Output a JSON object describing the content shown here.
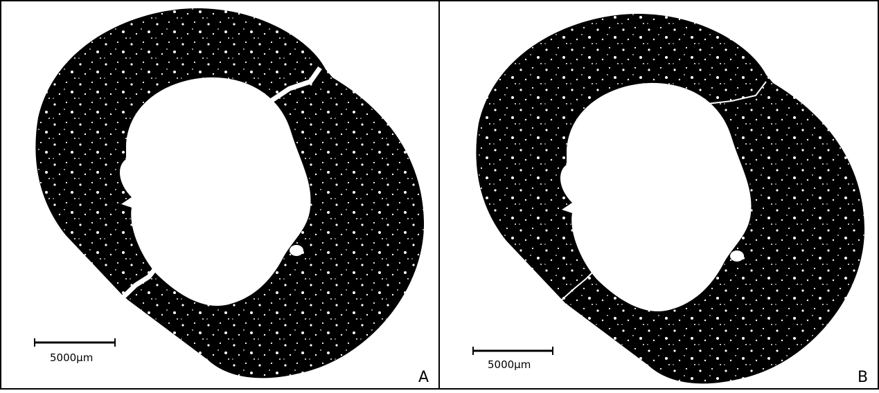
{
  "panels": [
    {
      "label": "A",
      "scale_bar": "5000µm"
    },
    {
      "label": "B",
      "scale_bar": "5000µm"
    }
  ]
}
